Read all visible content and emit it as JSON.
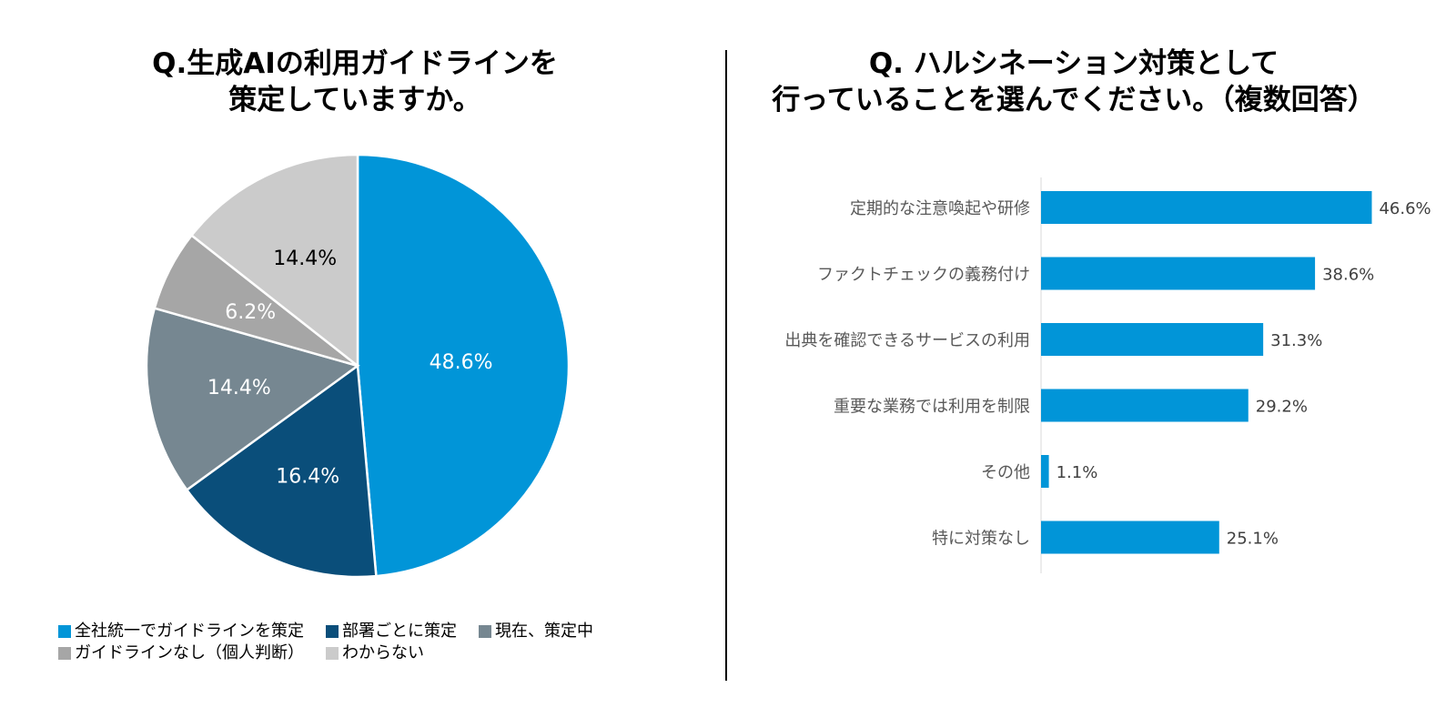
{
  "chart_data": [
    {
      "type": "pie",
      "title": "Q.生成AIの利用ガイドラインを\n策定していますか。",
      "slices": [
        {
          "label": "全社統一でガイドラインを策定",
          "value": 48.6,
          "value_label": "48.6%",
          "color": "#0195D8"
        },
        {
          "label": "部署ごとに策定",
          "value": 16.4,
          "value_label": "16.4%",
          "color": "#0A4E7A"
        },
        {
          "label": "現在、策定中",
          "value": 14.4,
          "value_label": "14.4%",
          "color": "#768791"
        },
        {
          "label": "ガイドラインなし（個人判断）",
          "value": 6.2,
          "value_label": "6.2%",
          "color": "#A6A6A6"
        },
        {
          "label": "わからない",
          "value": 14.4,
          "value_label": "14.4%",
          "color": "#CBCBCB"
        }
      ],
      "legend_position": "bottom",
      "start": "top, clockwise"
    },
    {
      "type": "bar",
      "orientation": "horizontal",
      "title": "Q. ハルシネーション対策として\n行っていることを選んでください。（複数回答）",
      "categories": [
        "定期的な注意喚起や研修",
        "ファクトチェックの義務付け",
        "出典を確認できるサービスの利用",
        "重要な業務では利用を制限",
        "その他",
        "特に対策なし"
      ],
      "values": [
        46.6,
        38.6,
        31.3,
        29.2,
        1.1,
        25.1
      ],
      "value_labels": [
        "46.6%",
        "38.6%",
        "31.3%",
        "29.2%",
        "1.1%",
        "25.1%"
      ],
      "color": "#0195D8",
      "xlim": [
        0,
        50
      ],
      "grid": false
    }
  ]
}
